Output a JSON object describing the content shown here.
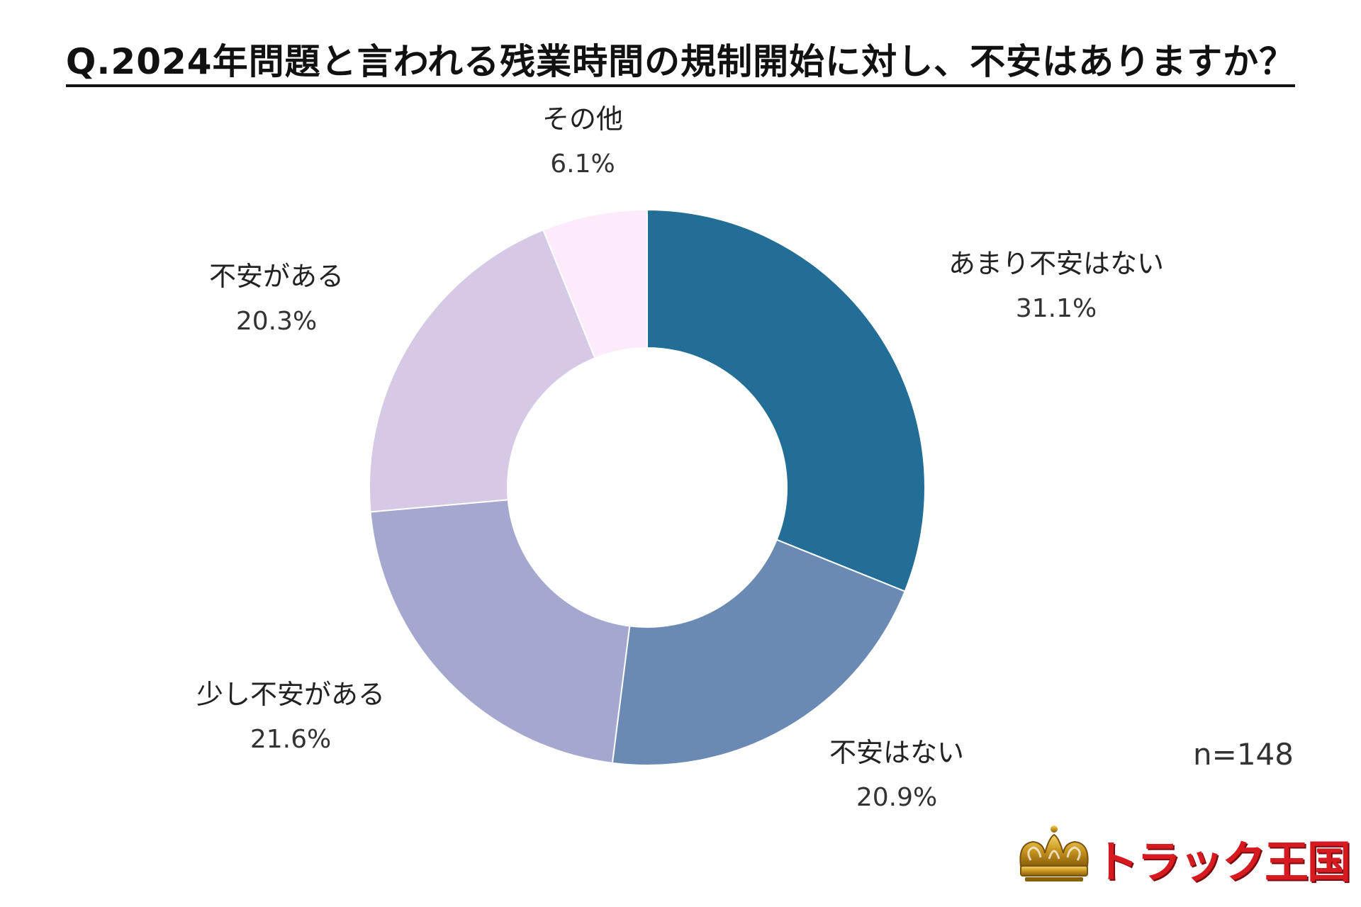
{
  "chart_data": {
    "type": "pie",
    "donut": true,
    "title": "Q.2024年問題と言われる残業時間の規制開始に対し、不安はありますか？",
    "sample_size": "n=148",
    "slices": [
      {
        "label": "あまり不安はない",
        "value": 31.1,
        "value_label": "31.1%",
        "color": "#236e96"
      },
      {
        "label": "不安はない",
        "value": 20.9,
        "value_label": "20.9%",
        "color": "#6a8ab3"
      },
      {
        "label": "少し不安がある",
        "value": 21.6,
        "value_label": "21.6%",
        "color": "#a4a8ce"
      },
      {
        "label": "不安がある",
        "value": 20.3,
        "value_label": "20.3%",
        "color": "#d6c9e6"
      },
      {
        "label": "その他",
        "value": 6.1,
        "value_label": "6.1%",
        "color": "#fdeafb"
      }
    ],
    "start_angle": "12 o'clock",
    "direction": "clockwise"
  },
  "logo": {
    "text": "トラック王国",
    "icon": "crown-icon"
  }
}
